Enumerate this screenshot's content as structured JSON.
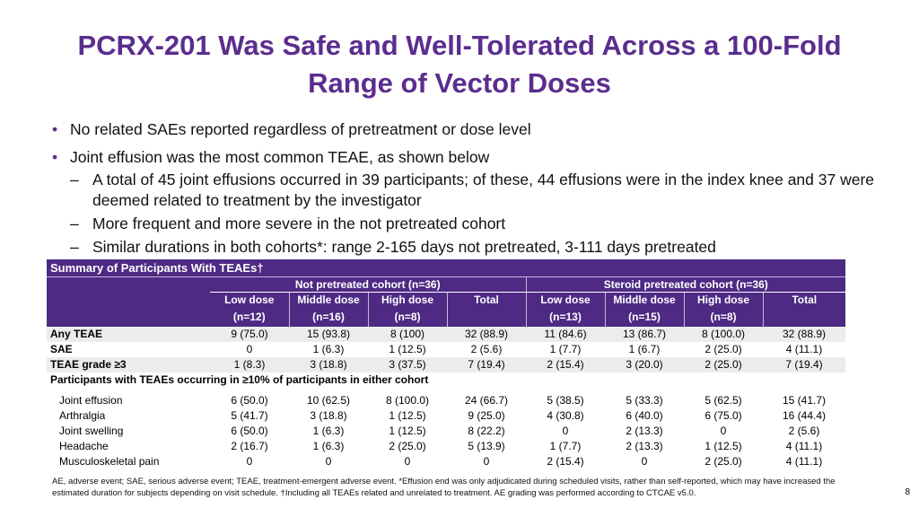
{
  "title_line1": "PCRX-201 Was Safe and Well-Tolerated Across a 100-Fold",
  "title_line2": "Range of Vector Doses",
  "bullets": {
    "b1": "No related SAEs reported regardless of pretreatment or dose level",
    "b2": "Joint effusion was the most common TEAE, as shown below",
    "sub1": "A total of 45 joint effusions occurred in 39 participants; of these, 44 effusions were in the index knee and 37 were deemed related to treatment by the investigator",
    "sub2": "More frequent and more severe in the not pretreated cohort",
    "sub3": "Similar durations in both cohorts*: range 2-165 days not pretreated, 3-111 days pretreated"
  },
  "table": {
    "caption": "Summary of Participants With TEAEs†",
    "cohort_not": "Not pretreated cohort (n=36)",
    "cohort_ster": "Steroid pretreated cohort (n=36)",
    "col_names": [
      "Low dose",
      "Middle dose",
      "High dose",
      "Total",
      "Low dose",
      "Middle dose",
      "High dose",
      "Total"
    ],
    "col_ns": [
      "(n=12)",
      "(n=16)",
      "(n=8)",
      "",
      "(n=13)",
      "(n=15)",
      "(n=8)",
      ""
    ],
    "rows_main": [
      {
        "label": "Any TEAE",
        "values": [
          "9 (75.0)",
          "15 (93.8)",
          "8 (100)",
          "32 (88.9)",
          "11 (84.6)",
          "13 (86.7)",
          "8 (100.0)",
          "32 (88.9)"
        ]
      },
      {
        "label": "SAE",
        "values": [
          "0",
          "1 (6.3)",
          "1 (12.5)",
          "2 (5.6)",
          "1 (7.7)",
          "1 (6.7)",
          "2 (25.0)",
          "4 (11.1)"
        ]
      },
      {
        "label": "TEAE grade ≥3",
        "values": [
          "1 (8.3)",
          "3 (18.8)",
          "3 (37.5)",
          "7 (19.4)",
          "2 (15.4)",
          "3 (20.0)",
          "2 (25.0)",
          "7 (19.4)"
        ]
      }
    ],
    "section_label": "Participants with TEAEs occurring in ≥10% of participants in either cohort",
    "rows_sub": [
      {
        "label": "Joint effusion",
        "values": [
          "6 (50.0)",
          "10 (62.5)",
          "8 (100.0)",
          "24 (66.7)",
          "5 (38.5)",
          "5 (33.3)",
          "5 (62.5)",
          "15 (41.7)"
        ]
      },
      {
        "label": "Arthralgia",
        "values": [
          "5 (41.7)",
          "3 (18.8)",
          "1 (12.5)",
          "9 (25.0)",
          "4 (30.8)",
          "6 (40.0)",
          "6 (75.0)",
          "16 (44.4)"
        ]
      },
      {
        "label": "Joint swelling",
        "values": [
          "6 (50.0)",
          "1 (6.3)",
          "1 (12.5)",
          "8 (22.2)",
          "0",
          "2 (13.3)",
          "0",
          "2 (5.6)"
        ]
      },
      {
        "label": "Headache",
        "values": [
          "2 (16.7)",
          "1 (6.3)",
          "2 (25.0)",
          "5 (13.9)",
          "1 (7.7)",
          "2 (13.3)",
          "1 (12.5)",
          "4 (11.1)"
        ]
      },
      {
        "label": "Musculoskeletal pain",
        "values": [
          "0",
          "0",
          "0",
          "0",
          "2 (15.4)",
          "0",
          "2 (25.0)",
          "4 (11.1)"
        ]
      }
    ]
  },
  "footer": "AE, adverse event; SAE, serious adverse event; TEAE, treatment-emergent adverse event. *Effusion end was only adjudicated during scheduled visits, rather than self-reported, which may have increased the estimated duration for subjects depending on visit schedule. †Including all TEAEs related and unrelated to treatment. AE grading was performed according to CTCAE v5.0.",
  "page_number": "8"
}
